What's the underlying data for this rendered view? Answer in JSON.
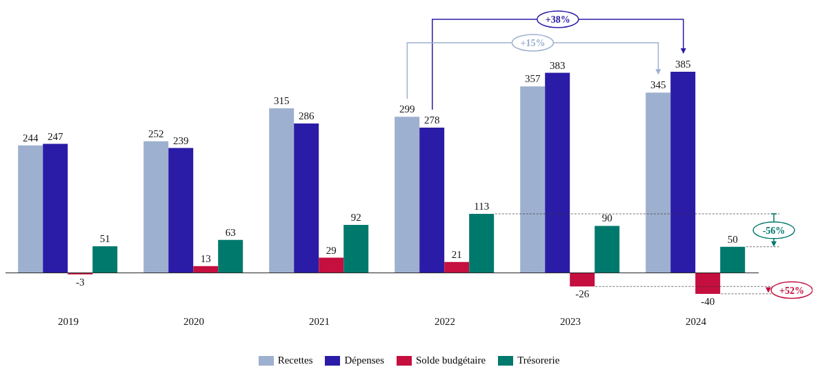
{
  "chart_data": {
    "type": "bar",
    "categories": [
      "2019",
      "2020",
      "2021",
      "2022",
      "2023",
      "2024"
    ],
    "series": [
      {
        "name": "Recettes",
        "color": "#9eb0cf",
        "values": [
          244,
          252,
          315,
          299,
          357,
          345
        ]
      },
      {
        "name": "Dépenses",
        "color": "#2a1ca6",
        "values": [
          247,
          239,
          286,
          278,
          383,
          385
        ]
      },
      {
        "name": "Solde budgétaire",
        "color": "#c40f3f",
        "values": [
          -3,
          13,
          29,
          21,
          -26,
          -40
        ]
      },
      {
        "name": "Trésorerie",
        "color": "#00796d",
        "values": [
          51,
          63,
          92,
          113,
          90,
          50
        ]
      }
    ],
    "data_labels": true,
    "legend": "bottom",
    "annotations": [
      "+38%",
      "+15%",
      "-56%",
      "+52%"
    ]
  }
}
